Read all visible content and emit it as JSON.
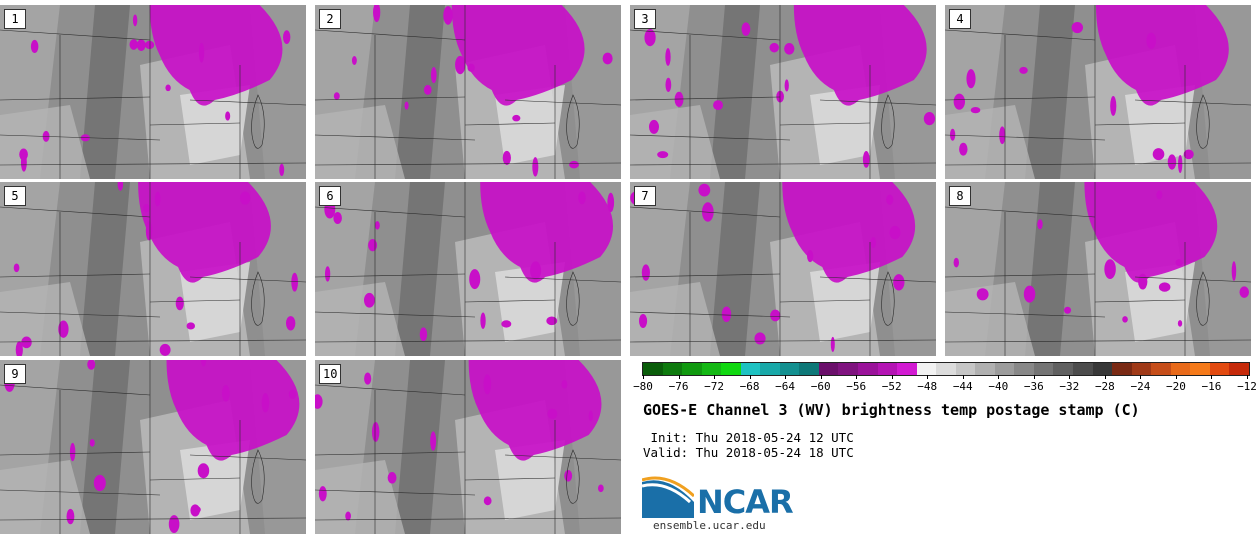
{
  "panels": [
    {
      "label": "1"
    },
    {
      "label": "2"
    },
    {
      "label": "3"
    },
    {
      "label": "4"
    },
    {
      "label": "5"
    },
    {
      "label": "6"
    },
    {
      "label": "7"
    },
    {
      "label": "8"
    },
    {
      "label": "9"
    },
    {
      "label": "10"
    }
  ],
  "colorbar": {
    "ticks": [
      "−80",
      "−76",
      "−72",
      "−68",
      "−64",
      "−60",
      "−56",
      "−52",
      "−48",
      "−44",
      "−40",
      "−36",
      "−32",
      "−28",
      "−24",
      "−20",
      "−16",
      "−12"
    ],
    "colors": [
      "#0a5d0a",
      "#0e7a0e",
      "#10990f",
      "#14b814",
      "#10d810",
      "#1ec2c2",
      "#18a8a8",
      "#139090",
      "#0e7878",
      "#6b0f6b",
      "#7f137f",
      "#9a129a",
      "#b414b4",
      "#d21ad2",
      "#f2f2f2",
      "#dcdcdc",
      "#c6c6c6",
      "#b0b0b0",
      "#9c9c9c",
      "#888888",
      "#747474",
      "#606060",
      "#4c4c4c",
      "#383838",
      "#7a2a14",
      "#a03a18",
      "#c64e1a",
      "#e86a1a",
      "#f57a1a",
      "#e24a10",
      "#c62a0a"
    ]
  },
  "title": "GOES-E Channel 3 (WV) brightness temp postage stamp (C)",
  "init": " Init: Thu 2018-05-24 12 UTC",
  "valid": "Valid: Thu 2018-05-24 18 UTC",
  "logo": {
    "text": "NCAR",
    "color": "#1a6fa8"
  },
  "site": "ensemble.ucar.edu"
}
